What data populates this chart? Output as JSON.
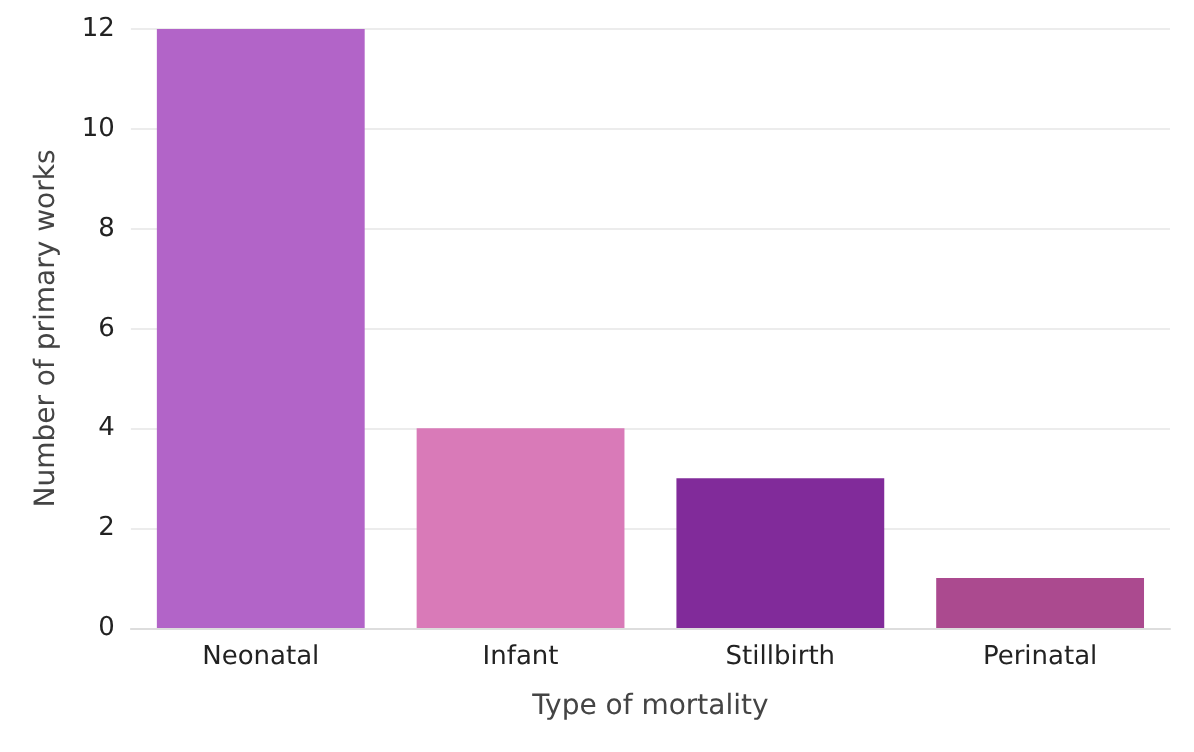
{
  "chart_data": {
    "type": "bar",
    "xlabel": "Type of mortality",
    "ylabel": "Number of primary works",
    "categories": [
      "Neonatal",
      "Infant",
      "Stillbirth",
      "Perinatal"
    ],
    "values": [
      12,
      4,
      3,
      1
    ],
    "colors": [
      "#b264c8",
      "#d97ab8",
      "#812b9a",
      "#ab4a8f"
    ],
    "ylim": [
      0,
      12
    ],
    "yticks": [
      0,
      2,
      4,
      6,
      8,
      10,
      12
    ],
    "grid": "y"
  }
}
